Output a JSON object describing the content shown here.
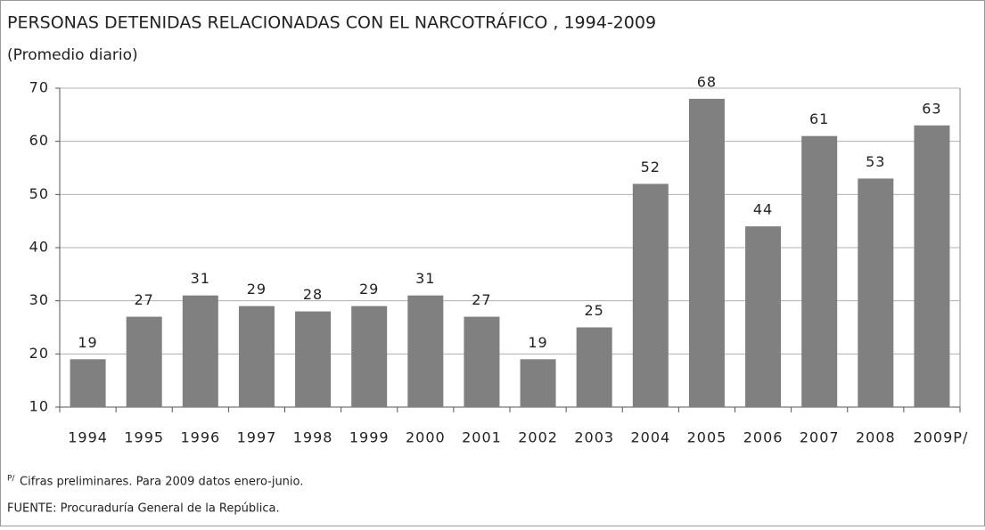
{
  "chart_data": {
    "type": "bar",
    "title": "PERSONAS DETENIDAS RELACIONADAS CON EL NARCOTRÁFICO , 1994-2009",
    "subtitle": "(Promedio diario)",
    "categories": [
      "1994",
      "1995",
      "1996",
      "1997",
      "1998",
      "1999",
      "2000",
      "2001",
      "2002",
      "2003",
      "2004",
      "2005",
      "2006",
      "2007",
      "2008",
      "2009P/"
    ],
    "values": [
      19,
      27,
      31,
      29,
      28,
      29,
      31,
      27,
      19,
      25,
      52,
      68,
      44,
      61,
      53,
      63
    ],
    "color": "#808080",
    "ylim": [
      10,
      70
    ],
    "yticks": [
      10,
      20,
      30,
      40,
      50,
      60,
      70
    ],
    "grid": true,
    "footnote": {
      "marker": "P/",
      "text": "Cifras preliminares. Para 2009 datos enero-junio."
    },
    "source": "FUENTE: Procuraduría General de la República."
  }
}
